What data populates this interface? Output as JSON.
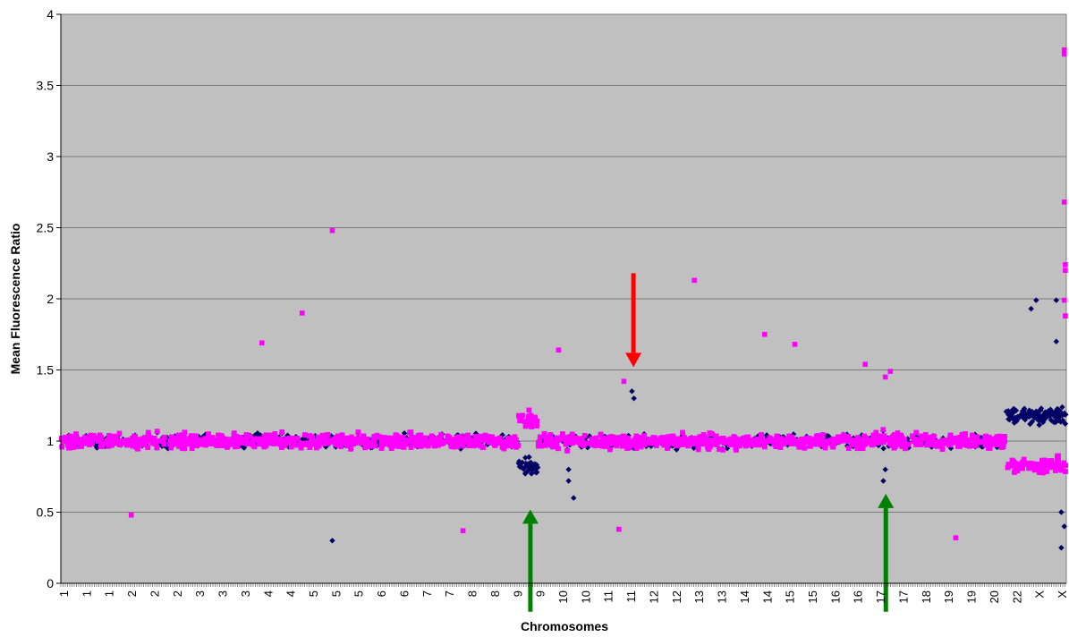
{
  "chart_data": {
    "type": "scatter",
    "title": "",
    "xlabel": "Chromosomes",
    "ylabel": "Mean Fluorescence Ratio",
    "ylim": [
      0,
      4
    ],
    "yticks": [
      "0",
      "0.5",
      "1",
      "1.5",
      "2",
      "2.5",
      "3",
      "3.5",
      "4"
    ],
    "grid": true,
    "legend": "none",
    "x_tick_labels": [
      "1",
      "1",
      "1",
      "2",
      "2",
      "2",
      "3",
      "3",
      "3",
      "4",
      "4",
      "5",
      "5",
      "5",
      "6",
      "6",
      "7",
      "7",
      "8",
      "8",
      "9",
      "9",
      "10",
      "10",
      "11",
      "11",
      "12",
      "12",
      "13",
      "13",
      "14",
      "14",
      "15",
      "15",
      "16",
      "16",
      "17",
      "17",
      "18",
      "19",
      "19",
      "20",
      "22",
      "X",
      "X"
    ],
    "plot_background": "#c0c0c0",
    "series": [
      {
        "color": "#000066",
        "marker": "diamond",
        "baseline_band": [
          0.85,
          1.15
        ],
        "notable_points": [
          [
            0.27,
            0.3
          ],
          [
            0.505,
            0.72
          ],
          [
            0.51,
            0.6
          ],
          [
            0.505,
            0.8
          ],
          [
            0.568,
            1.35
          ],
          [
            0.57,
            1.3
          ],
          [
            0.818,
            0.72
          ],
          [
            0.82,
            0.8
          ],
          [
            0.965,
            1.93
          ],
          [
            0.97,
            1.99
          ],
          [
            0.99,
            1.99
          ],
          [
            0.99,
            1.7
          ],
          [
            0.995,
            0.25
          ],
          [
            0.998,
            0.4
          ],
          [
            0.995,
            0.5
          ]
        ]
      },
      {
        "color": "#ff00ff",
        "marker": "square",
        "baseline_band": [
          0.85,
          1.15
        ],
        "notable_points": [
          [
            0.07,
            0.48
          ],
          [
            0.27,
            2.48
          ],
          [
            0.24,
            1.9
          ],
          [
            0.2,
            1.69
          ],
          [
            0.4,
            0.37
          ],
          [
            0.495,
            1.64
          ],
          [
            0.63,
            2.13
          ],
          [
            0.7,
            1.75
          ],
          [
            0.73,
            1.68
          ],
          [
            0.8,
            1.54
          ],
          [
            0.89,
            0.32
          ],
          [
            0.998,
            3.75
          ],
          [
            0.998,
            3.72
          ],
          [
            0.998,
            2.68
          ],
          [
            0.999,
            2.24
          ],
          [
            0.999,
            2.2
          ],
          [
            0.998,
            1.99
          ],
          [
            0.999,
            1.88
          ],
          [
            0.825,
            1.49
          ],
          [
            0.82,
            1.45
          ],
          [
            0.56,
            1.42
          ],
          [
            0.555,
            0.38
          ]
        ]
      }
    ],
    "annotations": [
      {
        "type": "arrow",
        "color": "#ff0000",
        "direction": "down",
        "x_fraction": 0.5695,
        "y_tail": 2.18,
        "y_head": 1.52
      },
      {
        "type": "arrow",
        "color": "#008000",
        "direction": "up",
        "x_fraction": 0.467,
        "y_tail": -0.2,
        "y_head": 0.52
      },
      {
        "type": "arrow",
        "color": "#008000",
        "direction": "up",
        "x_fraction": 0.8205,
        "y_tail": -0.2,
        "y_head": 0.63
      }
    ]
  }
}
